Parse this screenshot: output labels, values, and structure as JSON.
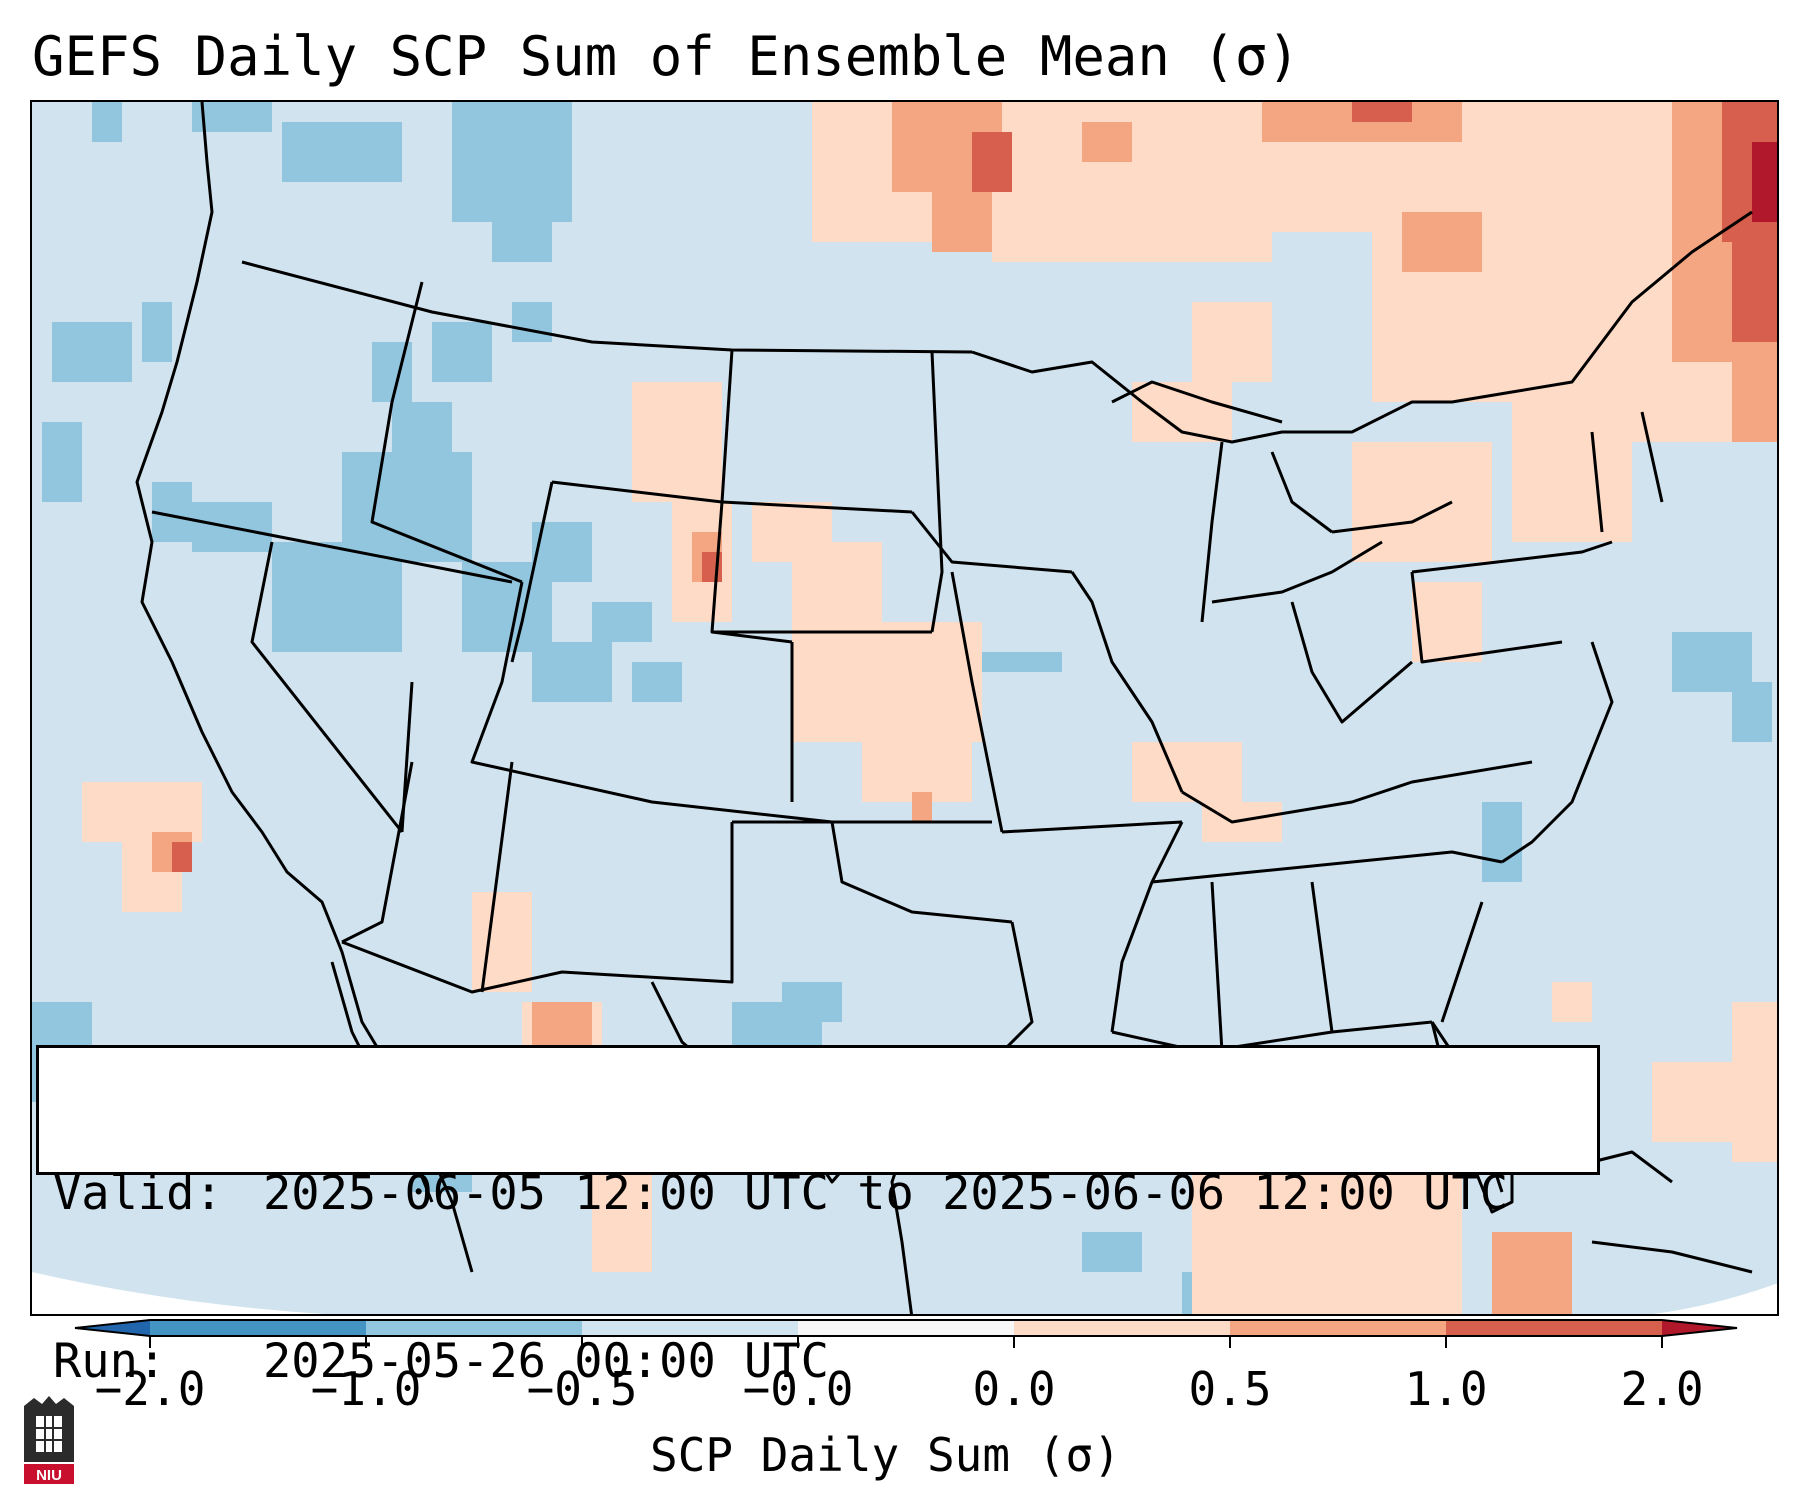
{
  "title": "GEFS Daily SCP Sum of Ensemble Mean (σ)",
  "info": {
    "valid_label": "Valid:",
    "valid_value": "2025-06-05 12:00 UTC to 2025-06-06 12:00 UTC",
    "run_label": "Run:",
    "run_value": "2025-05-26 00:00 UTC"
  },
  "colorbar": {
    "label": "SCP Daily Sum (σ)",
    "ticks": [
      "−2.0",
      "−1.0",
      "−0.5",
      "−0.0",
      "0.0",
      "0.5",
      "1.0",
      "2.0"
    ],
    "colors": [
      "#4393c3",
      "#92c5de",
      "#d1e5f0",
      "#f7f7f7",
      "#fddbc7",
      "#f4a582",
      "#d6604d"
    ],
    "extend_low_color": "#2166ac",
    "extend_high_color": "#b2182b"
  },
  "map": {
    "background_color": "#d0e3ef",
    "region": "Continental United States, southern Canada, northern Mexico"
  },
  "logo": {
    "text": "NIU"
  }
}
